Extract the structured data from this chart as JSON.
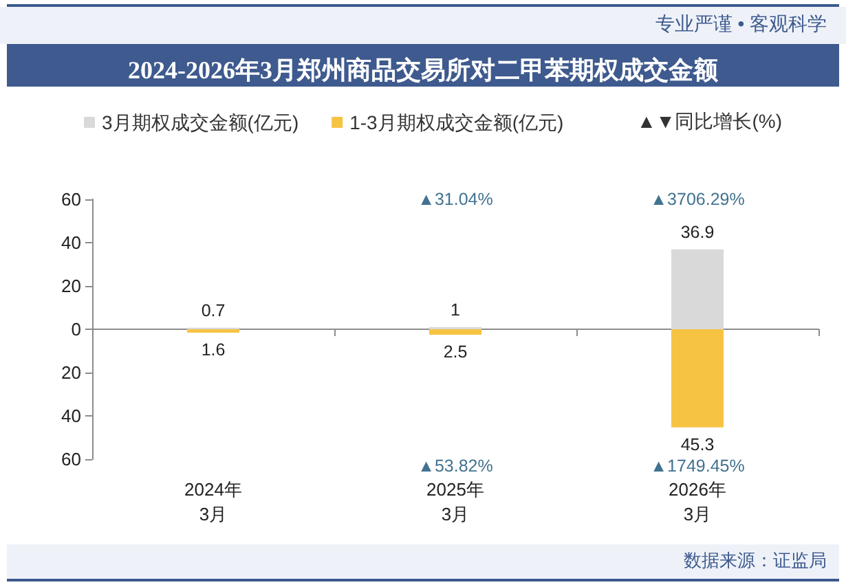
{
  "chart_data": {
    "type": "bar",
    "title": "2024-2026年3月郑州商品交易所对二甲苯期权成交金额",
    "categories": [
      "2024年\n3月",
      "2025年\n3月",
      "2026年\n3月"
    ],
    "series": [
      {
        "name": "3月期权成交金额(亿元)",
        "color": "#d9d9d9",
        "values": [
          0.7,
          1,
          36.9
        ]
      },
      {
        "name": "1-3月期权成交金额(亿元)",
        "color": "#f6c343",
        "values": [
          1.6,
          2.5,
          45.3
        ],
        "axis": "y2"
      }
    ],
    "data_labels": true,
    "ylim": [
      -60,
      60
    ],
    "yticks": [
      0,
      20,
      40,
      60
    ],
    "y2lim": [
      60,
      -60
    ],
    "y2ticks": [
      20,
      40,
      60
    ],
    "legend": "top",
    "annotations": [
      "专业严谨 • 客观科学",
      "▲▼同比增长(%)",
      "▲31.04%",
      "▲3706.29%",
      "▲53.82%",
      "▲1749.45%",
      "数据来源：证监局"
    ]
  }
}
